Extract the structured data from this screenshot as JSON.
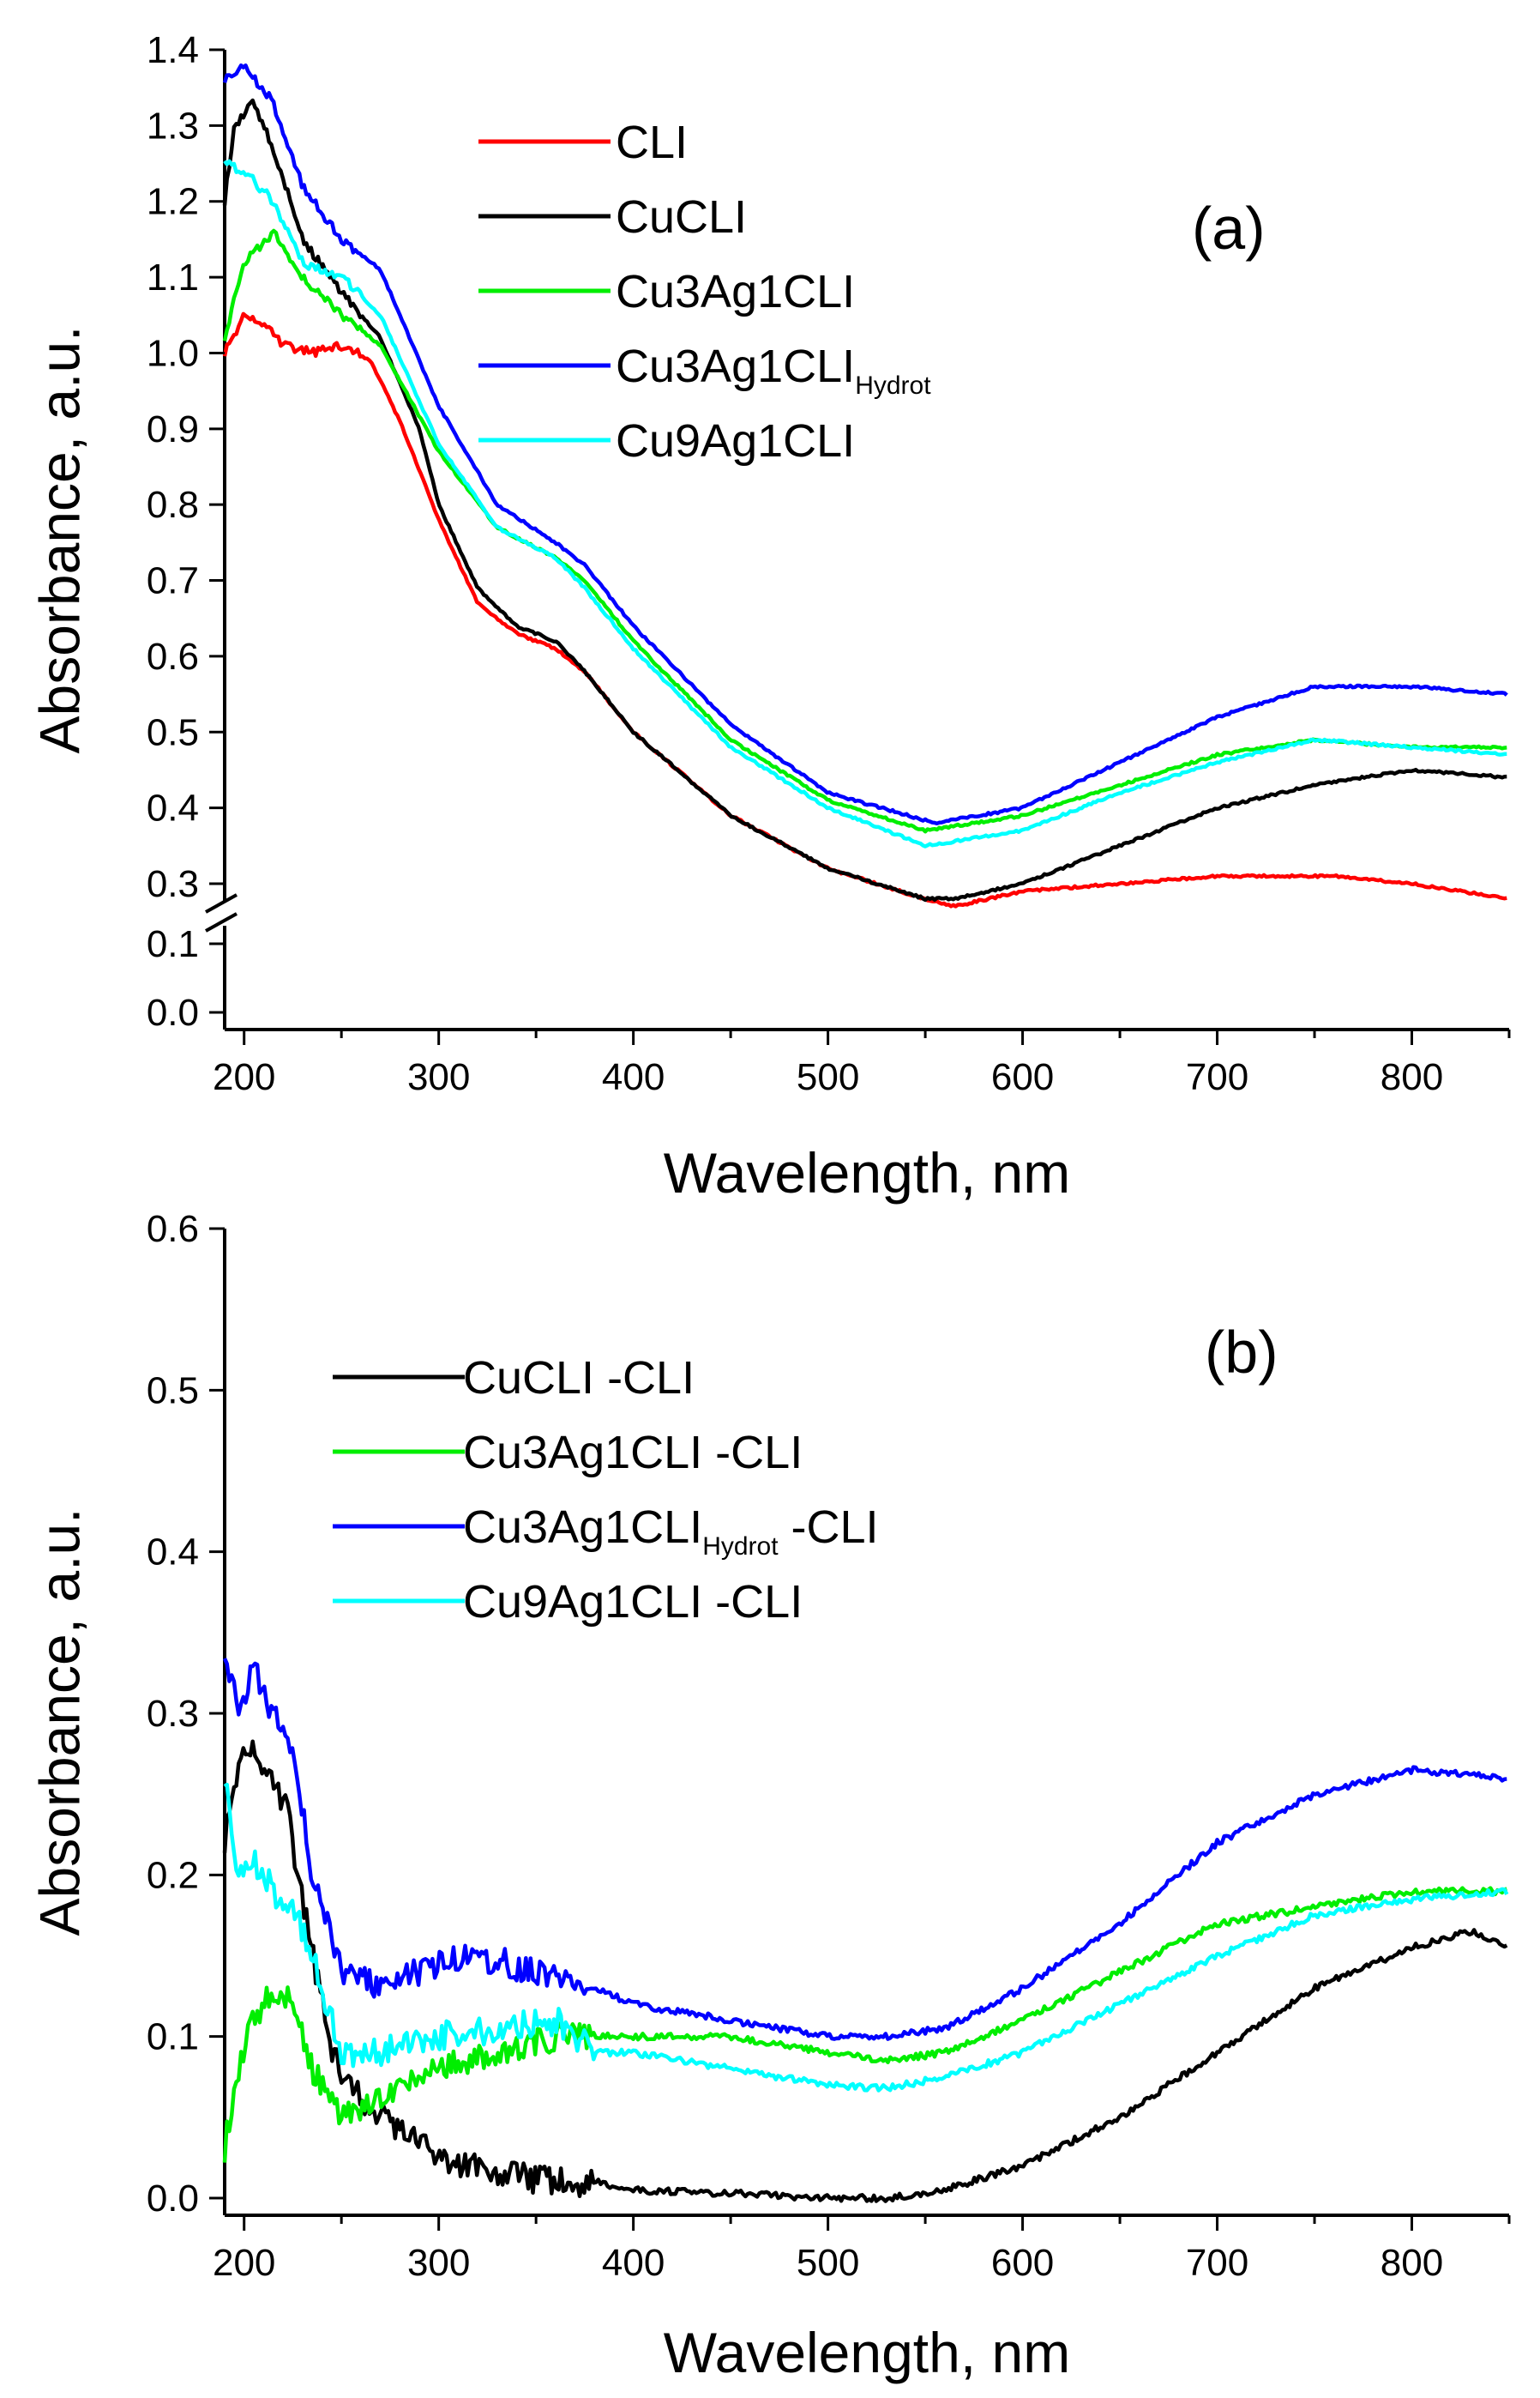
{
  "chart_data": [
    {
      "id": "a",
      "type": "line",
      "panel_label": "(a)",
      "xlabel": "Wavelength, nm",
      "ylabel": "Absorbance, a.u.",
      "xlim": [
        190,
        850
      ],
      "ylim": [
        0.0,
        1.4
      ],
      "y_axis_break": {
        "from": 0.13,
        "to": 0.27
      },
      "xticks": [
        200,
        300,
        400,
        500,
        600,
        700,
        800
      ],
      "xtick_labels": [
        "200",
        "300",
        "400",
        "500",
        "600",
        "700",
        "800"
      ],
      "yticks": [
        0.0,
        0.1,
        0.3,
        0.4,
        0.5,
        0.6,
        0.7,
        0.8,
        0.9,
        1.0,
        1.1,
        1.2,
        1.3,
        1.4
      ],
      "ytick_labels": [
        "0.0",
        "0.1",
        "0.3",
        "0.4",
        "0.5",
        "0.6",
        "0.7",
        "0.8",
        "0.9",
        "1.0",
        "1.1",
        "1.2",
        "1.3",
        "1.4"
      ],
      "legend_position": "top-center",
      "series": [
        {
          "name": "CLI",
          "name_subscript": "",
          "color": "#ff0000",
          "x": [
            190,
            200,
            210,
            220,
            235,
            250,
            265,
            280,
            300,
            320,
            340,
            360,
            375,
            400,
            450,
            500,
            550,
            565,
            600,
            650,
            700,
            730,
            760,
            800,
            850
          ],
          "values": [
            1.0,
            1.05,
            1.04,
            1.01,
            1.0,
            1.01,
            0.99,
            0.91,
            0.78,
            0.67,
            0.63,
            0.61,
            0.58,
            0.5,
            0.39,
            0.32,
            0.28,
            0.27,
            0.29,
            0.3,
            0.31,
            0.31,
            0.31,
            0.3,
            0.28
          ]
        },
        {
          "name": "CuCLI",
          "name_subscript": "",
          "color": "#000000",
          "x": [
            190,
            195,
            205,
            215,
            230,
            250,
            270,
            290,
            300,
            320,
            340,
            360,
            375,
            400,
            450,
            500,
            550,
            565,
            600,
            650,
            700,
            750,
            800,
            850
          ],
          "values": [
            1.2,
            1.3,
            1.33,
            1.27,
            1.15,
            1.08,
            1.02,
            0.9,
            0.8,
            0.69,
            0.64,
            0.62,
            0.58,
            0.5,
            0.39,
            0.32,
            0.28,
            0.28,
            0.3,
            0.35,
            0.4,
            0.43,
            0.45,
            0.44
          ]
        },
        {
          "name": "Cu3Ag1CLI",
          "name_subscript": "",
          "color": "#00ee00",
          "x": [
            190,
            200,
            215,
            230,
            250,
            270,
            300,
            330,
            360,
            375,
            400,
            450,
            500,
            550,
            600,
            650,
            700,
            750,
            800,
            850
          ],
          "values": [
            1.02,
            1.12,
            1.16,
            1.1,
            1.05,
            1.01,
            0.87,
            0.77,
            0.73,
            0.7,
            0.62,
            0.49,
            0.41,
            0.37,
            0.39,
            0.43,
            0.47,
            0.49,
            0.48,
            0.48
          ]
        },
        {
          "name": "Cu3Ag1CLI",
          "name_subscript": "Hydrot",
          "color": "#0000ff",
          "x": [
            190,
            200,
            215,
            230,
            250,
            270,
            300,
            330,
            360,
            375,
            400,
            450,
            500,
            555,
            600,
            650,
            700,
            750,
            800,
            850
          ],
          "values": [
            1.36,
            1.38,
            1.33,
            1.22,
            1.15,
            1.11,
            0.93,
            0.8,
            0.75,
            0.72,
            0.64,
            0.51,
            0.42,
            0.38,
            0.4,
            0.46,
            0.52,
            0.56,
            0.56,
            0.55
          ]
        },
        {
          "name": "Cu9Ag1CLI",
          "name_subscript": "",
          "color": "#00ffff",
          "x": [
            190,
            200,
            215,
            230,
            250,
            270,
            300,
            330,
            360,
            375,
            400,
            450,
            500,
            550,
            600,
            650,
            700,
            750,
            800,
            850
          ],
          "values": [
            1.25,
            1.24,
            1.2,
            1.12,
            1.1,
            1.05,
            0.88,
            0.77,
            0.73,
            0.69,
            0.61,
            0.48,
            0.4,
            0.35,
            0.37,
            0.42,
            0.46,
            0.49,
            0.48,
            0.47
          ]
        }
      ]
    },
    {
      "id": "b",
      "type": "line",
      "panel_label": "(b)",
      "xlabel": "Wavelength, nm",
      "ylabel": "Absorbance, a.u.",
      "xlim": [
        190,
        850
      ],
      "ylim": [
        0.0,
        0.6
      ],
      "xticks": [
        200,
        300,
        400,
        500,
        600,
        700,
        800
      ],
      "xtick_labels": [
        "200",
        "300",
        "400",
        "500",
        "600",
        "700",
        "800"
      ],
      "yticks": [
        0.0,
        0.1,
        0.2,
        0.3,
        0.4,
        0.5,
        0.6
      ],
      "ytick_labels": [
        "0.0",
        "0.1",
        "0.2",
        "0.3",
        "0.4",
        "0.5",
        "0.6"
      ],
      "legend_position": "upper-left",
      "series": [
        {
          "name": "CuCLI -CLI",
          "name_subscript": "",
          "suffix": "",
          "color": "#000000",
          "x": [
            190,
            197,
            205,
            213,
            222,
            232,
            245,
            260,
            280,
            300,
            330,
            360,
            380,
            400,
            450,
            500,
            530,
            560,
            600,
            650,
            700,
            750,
            800,
            830,
            850
          ],
          "values": [
            0.22,
            0.27,
            0.28,
            0.26,
            0.24,
            0.17,
            0.09,
            0.06,
            0.04,
            0.025,
            0.015,
            0.01,
            0.01,
            0.005,
            0.003,
            0.0,
            0.0,
            0.005,
            0.02,
            0.05,
            0.09,
            0.13,
            0.155,
            0.165,
            0.155
          ]
        },
        {
          "name": "Cu3Ag1CLI -CLI",
          "name_subscript": "",
          "suffix": "",
          "color": "#00ee00",
          "x": [
            190,
            197,
            205,
            215,
            225,
            235,
            250,
            270,
            300,
            330,
            360,
            380,
            400,
            450,
            500,
            530,
            560,
            600,
            650,
            700,
            750,
            800,
            850
          ],
          "values": [
            0.03,
            0.08,
            0.11,
            0.13,
            0.12,
            0.08,
            0.05,
            0.06,
            0.08,
            0.09,
            0.1,
            0.1,
            0.1,
            0.1,
            0.09,
            0.085,
            0.09,
            0.11,
            0.14,
            0.17,
            0.18,
            0.19,
            0.19
          ]
        },
        {
          "name": "Cu3Ag1CLI",
          "name_subscript": "Hydrot",
          "suffix": " -CLI",
          "color": "#0000ff",
          "x": [
            190,
            197,
            205,
            215,
            225,
            235,
            250,
            270,
            300,
            320,
            350,
            380,
            400,
            450,
            500,
            530,
            560,
            600,
            650,
            700,
            750,
            800,
            850
          ],
          "values": [
            0.34,
            0.3,
            0.33,
            0.3,
            0.28,
            0.2,
            0.14,
            0.13,
            0.145,
            0.15,
            0.14,
            0.13,
            0.12,
            0.11,
            0.1,
            0.1,
            0.105,
            0.13,
            0.17,
            0.22,
            0.25,
            0.265,
            0.26
          ]
        },
        {
          "name": "Cu9Ag1CLI -CLI",
          "name_subscript": "",
          "suffix": "",
          "color": "#00ffff",
          "x": [
            190,
            197,
            205,
            215,
            225,
            235,
            250,
            270,
            300,
            330,
            360,
            380,
            400,
            450,
            500,
            530,
            560,
            600,
            650,
            700,
            750,
            800,
            850
          ],
          "values": [
            0.26,
            0.2,
            0.21,
            0.19,
            0.18,
            0.15,
            0.09,
            0.09,
            0.1,
            0.105,
            0.11,
            0.09,
            0.09,
            0.08,
            0.07,
            0.068,
            0.075,
            0.09,
            0.12,
            0.15,
            0.175,
            0.185,
            0.19
          ]
        }
      ]
    }
  ]
}
